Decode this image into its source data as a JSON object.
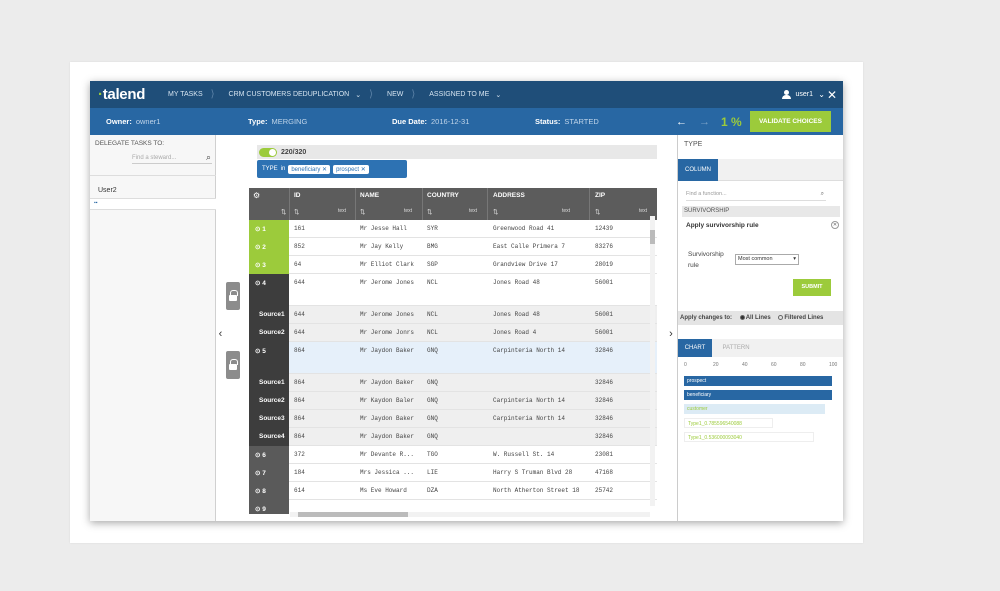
{
  "nav": {
    "logo": "talend",
    "crumbs": [
      "MY TASKS",
      "CRM CUSTOMERS DEDUPLICATION",
      "NEW",
      "ASSIGNED TO ME"
    ],
    "user": "user1"
  },
  "info": {
    "owner_label": "Owner:",
    "owner_value": "owner1",
    "type_label": "Type:",
    "type_value": "MERGING",
    "due_label": "Due Date:",
    "due_value": "2016-12-31",
    "status_label": "Status:",
    "status_value": "STARTED",
    "progress": "1 %",
    "validate": "VALIDATE CHOICES"
  },
  "left": {
    "delegate_label": "DELEGATE TASKS TO:",
    "find_placeholder": "Find a steward...",
    "user": "User2"
  },
  "table": {
    "count": "220/320",
    "filter": {
      "field": "TYPE",
      "op": "in",
      "chips": [
        "beneficiary",
        "prospect"
      ]
    },
    "columns": [
      "ID",
      "NAME",
      "COUNTRY",
      "ADDRESS",
      "ZIP"
    ],
    "sort_label": "text",
    "rows": [
      {
        "head": "1",
        "kind": "green",
        "id": "161",
        "name": "Mr Jesse Hall",
        "country": "SYR",
        "address": "Greenwood Road 41",
        "zip": "12439"
      },
      {
        "head": "2",
        "kind": "green",
        "id": "852",
        "name": "Mr Jay Kelly",
        "country": "BMG",
        "address": "East Calle Primera 7",
        "zip": "83276"
      },
      {
        "head": "3",
        "kind": "green",
        "id": "64",
        "name": "Mr Elliot Clark",
        "country": "SGP",
        "address": "Grandview Drive 17",
        "zip": "28019"
      },
      {
        "head": "4",
        "kind": "dark",
        "id": "644",
        "name": "Mr Jerome Jones",
        "country": "NCL",
        "address": "Jones Road 48",
        "zip": "56001"
      },
      {
        "head": "Source1",
        "kind": "src",
        "id": "644",
        "name": "Mr Jerome Jones",
        "country": "NCL",
        "address": "Jones Road 48",
        "zip": "56001"
      },
      {
        "head": "Source2",
        "kind": "src",
        "id": "644",
        "name": "Mr Jerome Jonrs",
        "country": "NCL",
        "address": "Jones Road 4",
        "zip": "56001"
      },
      {
        "head": "5",
        "kind": "dark",
        "id": "864",
        "name": "Mr Jaydon Baker",
        "country": "GNQ",
        "address": "Carpinteria North 14",
        "zip": "32846"
      },
      {
        "head": "Source1",
        "kind": "src",
        "id": "864",
        "name": "Mr Jaydon Baker",
        "country": "GNQ",
        "address": "",
        "zip": "32846"
      },
      {
        "head": "Source2",
        "kind": "src",
        "id": "864",
        "name": "Mr Kaydon Baler",
        "country": "GNQ",
        "address": "Carpinteria North 14",
        "zip": "32846"
      },
      {
        "head": "Source3",
        "kind": "src",
        "id": "864",
        "name": "Mr Jaydon Baker",
        "country": "GNQ",
        "address": "Carpinteria North 14",
        "zip": "32846"
      },
      {
        "head": "Source4",
        "kind": "src",
        "id": "864",
        "name": "Mr Jaydon Baker",
        "country": "GNQ",
        "address": "",
        "zip": "32846"
      },
      {
        "head": "6",
        "kind": "gray",
        "id": "372",
        "name": "Mr Devante R...",
        "country": "TGO",
        "address": "W. Russell St. 14",
        "zip": "23081"
      },
      {
        "head": "7",
        "kind": "gray",
        "id": "184",
        "name": "Mrs Jessica ...",
        "country": "LIE",
        "address": "Harry S Truman Blvd 28",
        "zip": "47168"
      },
      {
        "head": "8",
        "kind": "gray",
        "id": "614",
        "name": "Ms Eve Howard",
        "country": "DZA",
        "address": "North Atherton Street 18",
        "zip": "25742"
      },
      {
        "head": "9",
        "kind": "gray",
        "id": "",
        "name": "",
        "country": "",
        "address": "",
        "zip": ""
      }
    ]
  },
  "right": {
    "type_label": "TYPE",
    "tab_column": "COLUMN",
    "find_placeholder": "Find a function...",
    "survivorship": "SURVIVORSHIP",
    "apply_rule": "Apply survivorship rule",
    "rule_label": "Survivorship rule",
    "rule_value": "Most common",
    "submit": "SUBMIT",
    "apply_changes": "Apply changes to:",
    "opt_all": "All Lines",
    "opt_filtered": "Filtered Lines",
    "tab_chart": "CHART",
    "tab_pattern": "PATTERN",
    "axis": [
      "0",
      "20",
      "40",
      "60",
      "80",
      "100"
    ],
    "bars": [
      {
        "label": "prospect",
        "value": 100,
        "color": "#2867a3"
      },
      {
        "label": "beneficiary",
        "value": 100,
        "color": "#2867a3"
      },
      {
        "label": "customer",
        "value": 95,
        "color": "#dcebf5"
      },
      {
        "label": "Type1_0.785596540088",
        "value": 60,
        "color": "#ffffff"
      },
      {
        "label": "Type1_0.536000093040",
        "value": 88,
        "color": "#ffffff"
      }
    ]
  }
}
